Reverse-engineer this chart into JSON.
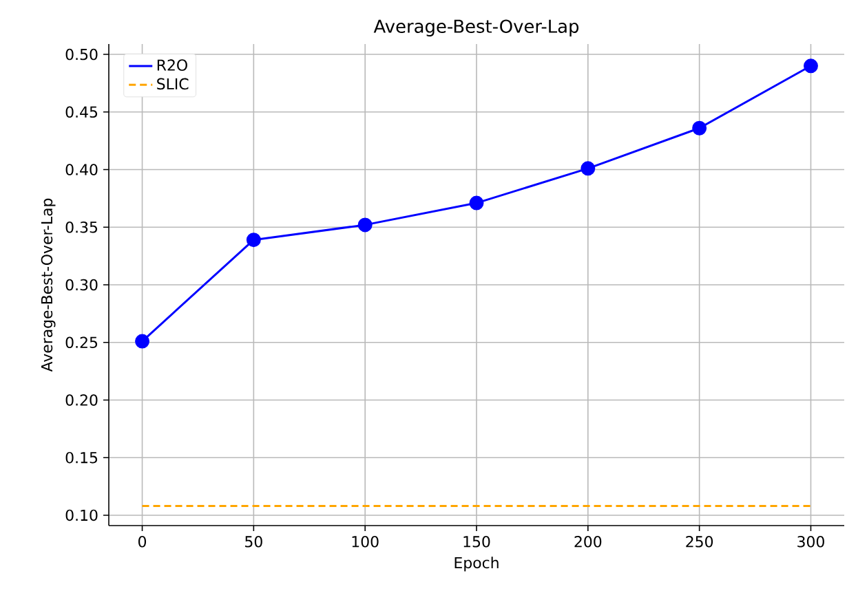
{
  "chart_data": {
    "type": "line",
    "title": "Average-Best-Over-Lap",
    "xlabel": "Epoch",
    "ylabel": "Average-Best-Over-Lap",
    "x": [
      0,
      50,
      100,
      150,
      200,
      250,
      300
    ],
    "series": [
      {
        "name": "R2O",
        "color": "#0000ff",
        "values": [
          0.251,
          0.339,
          0.352,
          0.371,
          0.401,
          0.436,
          0.49
        ],
        "marker": "circle",
        "line_style": "solid"
      },
      {
        "name": "SLIC",
        "color": "#ffa500",
        "x": [
          0,
          300
        ],
        "values": [
          0.108,
          0.108
        ],
        "marker": "none",
        "line_style": "dashed"
      }
    ],
    "xlim": [
      -15,
      315
    ],
    "ylim": [
      0.091,
      0.509
    ],
    "xticks": [
      0,
      50,
      100,
      150,
      200,
      250,
      300
    ],
    "yticks": [
      {
        "value": 0.1,
        "label": "0.10"
      },
      {
        "value": 0.15,
        "label": "0.15"
      },
      {
        "value": 0.2,
        "label": "0.20"
      },
      {
        "value": 0.25,
        "label": "0.25"
      },
      {
        "value": 0.3,
        "label": "0.30"
      },
      {
        "value": 0.35,
        "label": "0.35"
      },
      {
        "value": 0.4,
        "label": "0.40"
      },
      {
        "value": 0.45,
        "label": "0.45"
      },
      {
        "value": 0.5,
        "label": "0.50"
      }
    ],
    "grid": true,
    "legend": "top left"
  }
}
